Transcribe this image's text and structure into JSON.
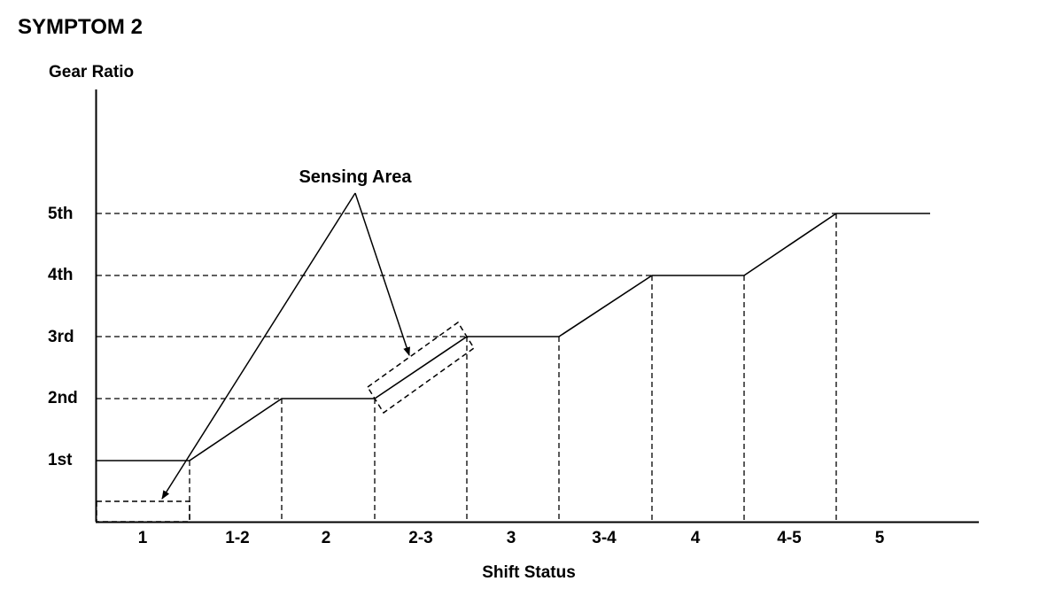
{
  "title": "SYMPTOM 2",
  "y_axis": {
    "label": "Gear Ratio",
    "ticks": [
      "1st",
      "2nd",
      "3rd",
      "4th",
      "5th"
    ]
  },
  "x_axis": {
    "label": "Shift Status",
    "ticks": [
      "1",
      "1-2",
      "2",
      "2-3",
      "3",
      "3-4",
      "4",
      "4-5",
      "5"
    ]
  },
  "annotation": {
    "label": "Sensing Area"
  },
  "colors": {
    "line": "#000000",
    "background": "#ffffff"
  }
}
